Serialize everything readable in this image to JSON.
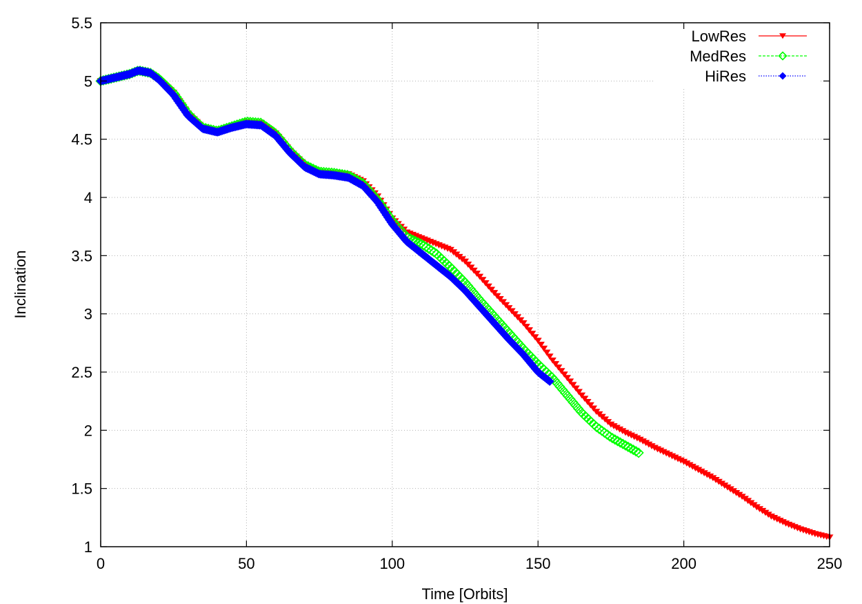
{
  "chart_data": {
    "type": "line",
    "title": "",
    "xlabel": "Time [Orbits]",
    "ylabel": "Inclination",
    "xlim": [
      0,
      250
    ],
    "ylim": [
      1,
      5.5
    ],
    "xticks": [
      "0",
      "50",
      "100",
      "150",
      "200",
      "250"
    ],
    "yticks": [
      "1",
      "1.5",
      "2",
      "2.5",
      "3",
      "3.5",
      "4",
      "4.5",
      "5",
      "5.5"
    ],
    "grid": true,
    "legend_position": "top-right",
    "series": [
      {
        "name": "LowRes",
        "color": "#ff0000",
        "marker": "triangle-down",
        "points": [
          [
            0,
            5.0
          ],
          [
            5,
            5.03
          ],
          [
            10,
            5.06
          ],
          [
            13,
            5.08
          ],
          [
            17,
            5.06
          ],
          [
            20,
            5.01
          ],
          [
            25,
            4.9
          ],
          [
            30,
            4.72
          ],
          [
            35,
            4.6
          ],
          [
            40,
            4.57
          ],
          [
            45,
            4.61
          ],
          [
            50,
            4.65
          ],
          [
            55,
            4.64
          ],
          [
            60,
            4.55
          ],
          [
            65,
            4.4
          ],
          [
            70,
            4.28
          ],
          [
            75,
            4.22
          ],
          [
            80,
            4.21
          ],
          [
            85,
            4.2
          ],
          [
            90,
            4.14
          ],
          [
            95,
            4.01
          ],
          [
            100,
            3.82
          ],
          [
            105,
            3.7
          ],
          [
            110,
            3.65
          ],
          [
            115,
            3.6
          ],
          [
            120,
            3.55
          ],
          [
            125,
            3.45
          ],
          [
            130,
            3.32
          ],
          [
            135,
            3.18
          ],
          [
            140,
            3.05
          ],
          [
            145,
            2.92
          ],
          [
            150,
            2.77
          ],
          [
            155,
            2.6
          ],
          [
            160,
            2.45
          ],
          [
            165,
            2.3
          ],
          [
            170,
            2.16
          ],
          [
            175,
            2.05
          ],
          [
            180,
            1.98
          ],
          [
            185,
            1.92
          ],
          [
            190,
            1.85
          ],
          [
            195,
            1.79
          ],
          [
            200,
            1.73
          ],
          [
            205,
            1.66
          ],
          [
            210,
            1.59
          ],
          [
            215,
            1.51
          ],
          [
            220,
            1.43
          ],
          [
            225,
            1.34
          ],
          [
            230,
            1.26
          ],
          [
            235,
            1.2
          ],
          [
            240,
            1.15
          ],
          [
            245,
            1.11
          ],
          [
            250,
            1.08
          ]
        ]
      },
      {
        "name": "MedRes",
        "color": "#00ff00",
        "marker": "diamond-open",
        "points": [
          [
            0,
            5.0
          ],
          [
            5,
            5.03
          ],
          [
            10,
            5.06
          ],
          [
            13,
            5.09
          ],
          [
            17,
            5.07
          ],
          [
            20,
            5.02
          ],
          [
            25,
            4.9
          ],
          [
            30,
            4.72
          ],
          [
            35,
            4.6
          ],
          [
            40,
            4.57
          ],
          [
            45,
            4.61
          ],
          [
            50,
            4.65
          ],
          [
            55,
            4.64
          ],
          [
            60,
            4.55
          ],
          [
            65,
            4.4
          ],
          [
            70,
            4.28
          ],
          [
            75,
            4.22
          ],
          [
            80,
            4.21
          ],
          [
            85,
            4.19
          ],
          [
            90,
            4.12
          ],
          [
            95,
            3.98
          ],
          [
            100,
            3.8
          ],
          [
            105,
            3.66
          ],
          [
            110,
            3.6
          ],
          [
            115,
            3.52
          ],
          [
            120,
            3.4
          ],
          [
            125,
            3.27
          ],
          [
            130,
            3.12
          ],
          [
            135,
            2.98
          ],
          [
            140,
            2.84
          ],
          [
            145,
            2.7
          ],
          [
            150,
            2.57
          ],
          [
            155,
            2.45
          ],
          [
            160,
            2.3
          ],
          [
            165,
            2.15
          ],
          [
            170,
            2.03
          ],
          [
            175,
            1.94
          ],
          [
            180,
            1.87
          ],
          [
            185,
            1.8
          ]
        ]
      },
      {
        "name": "HiRes",
        "color": "#0000ff",
        "marker": "diamond-filled",
        "points": [
          [
            0,
            5.0
          ],
          [
            5,
            5.03
          ],
          [
            10,
            5.06
          ],
          [
            13,
            5.09
          ],
          [
            17,
            5.07
          ],
          [
            20,
            5.01
          ],
          [
            25,
            4.88
          ],
          [
            30,
            4.7
          ],
          [
            35,
            4.59
          ],
          [
            40,
            4.56
          ],
          [
            45,
            4.6
          ],
          [
            50,
            4.63
          ],
          [
            55,
            4.62
          ],
          [
            60,
            4.53
          ],
          [
            65,
            4.38
          ],
          [
            70,
            4.26
          ],
          [
            75,
            4.2
          ],
          [
            80,
            4.19
          ],
          [
            85,
            4.17
          ],
          [
            90,
            4.1
          ],
          [
            95,
            3.96
          ],
          [
            100,
            3.77
          ],
          [
            105,
            3.62
          ],
          [
            110,
            3.52
          ],
          [
            115,
            3.42
          ],
          [
            120,
            3.32
          ],
          [
            125,
            3.2
          ],
          [
            130,
            3.06
          ],
          [
            135,
            2.92
          ],
          [
            140,
            2.78
          ],
          [
            145,
            2.65
          ],
          [
            150,
            2.5
          ],
          [
            154,
            2.42
          ]
        ]
      }
    ]
  }
}
